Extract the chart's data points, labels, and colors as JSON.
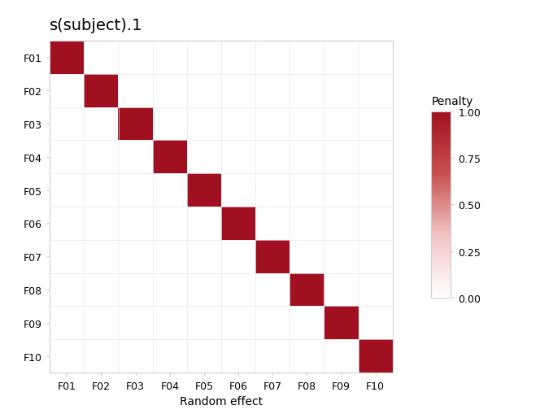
{
  "title": "s(subject).1",
  "xlabel": "Random effect",
  "ylabel": "",
  "labels": [
    "F01",
    "F02",
    "F03",
    "F04",
    "F05",
    "F06",
    "F07",
    "F08",
    "F09",
    "F10"
  ],
  "n": 10,
  "diagonal_value": 1.0,
  "off_diagonal_value": 0.0,
  "cmap_colors": [
    "#ffffff",
    "#f2c4c4",
    "#c85050",
    "#a01020"
  ],
  "colorbar_label": "Penalty",
  "colorbar_ticks": [
    0.0,
    0.25,
    0.5,
    0.75,
    1.0
  ],
  "colorbar_ticklabels": [
    "0.00",
    "0.25",
    "0.50",
    "0.75",
    "1.00"
  ],
  "background_color": "#ffffff",
  "plot_bg_color": "#ffffff",
  "title_fontsize": 14,
  "label_fontsize": 10,
  "tick_fontsize": 9,
  "colorbar_fontsize": 10,
  "spine_color": "#d0d0d0",
  "grid_color": "#e8e8e8"
}
